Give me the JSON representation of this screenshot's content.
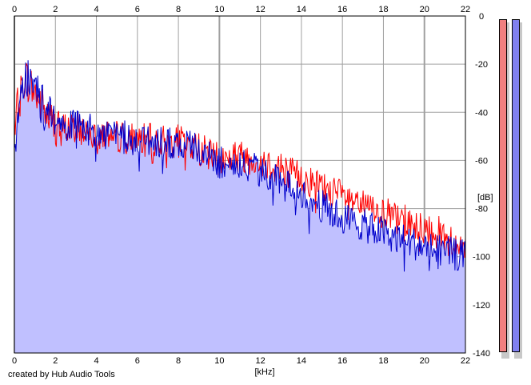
{
  "chart_data": {
    "type": "area",
    "xlabel": "[kHz]",
    "ylabel": "[dB]",
    "xlim": [
      0,
      22
    ],
    "ylim": [
      -140,
      0
    ],
    "x_ticks": [
      0,
      2,
      4,
      6,
      8,
      10,
      12,
      14,
      16,
      18,
      20,
      22
    ],
    "y_ticks": [
      0,
      -20,
      -40,
      -60,
      -80,
      -100,
      -120,
      -140
    ],
    "grid": true,
    "series": [
      {
        "color": "#ff0000",
        "x": [
          0,
          0.5,
          1,
          1.5,
          2,
          3,
          4,
          5,
          6,
          7,
          8,
          9,
          10,
          11,
          12,
          13,
          14,
          15,
          16,
          17,
          18,
          19,
          20,
          21,
          22
        ],
        "values": [
          -45,
          -25,
          -32,
          -40,
          -46,
          -47,
          -48,
          -50,
          -51,
          -52,
          -52,
          -55,
          -60,
          -58,
          -60,
          -63,
          -67,
          -71,
          -75,
          -79,
          -82,
          -85,
          -88,
          -91,
          -98
        ]
      },
      {
        "color": "#0000cc",
        "x": [
          0,
          0.5,
          1,
          1.5,
          2,
          3,
          4,
          5,
          6,
          7,
          8,
          9,
          10,
          11,
          12,
          13,
          14,
          15,
          16,
          17,
          18,
          19,
          20,
          21,
          22
        ],
        "values": [
          -55,
          -25,
          -30,
          -40,
          -45,
          -46,
          -48,
          -50,
          -51,
          -52,
          -53,
          -56,
          -61,
          -62,
          -64,
          -70,
          -73,
          -79,
          -84,
          -87,
          -90,
          -93,
          -96,
          -98,
          -100
        ]
      }
    ]
  },
  "credit": "created by Hub Audio Tools",
  "meters": {
    "left_color": "#f08080",
    "right_color": "#8080f0"
  },
  "colors": {
    "fill": "#c0c0ff",
    "grid": "#a0a0a0"
  }
}
